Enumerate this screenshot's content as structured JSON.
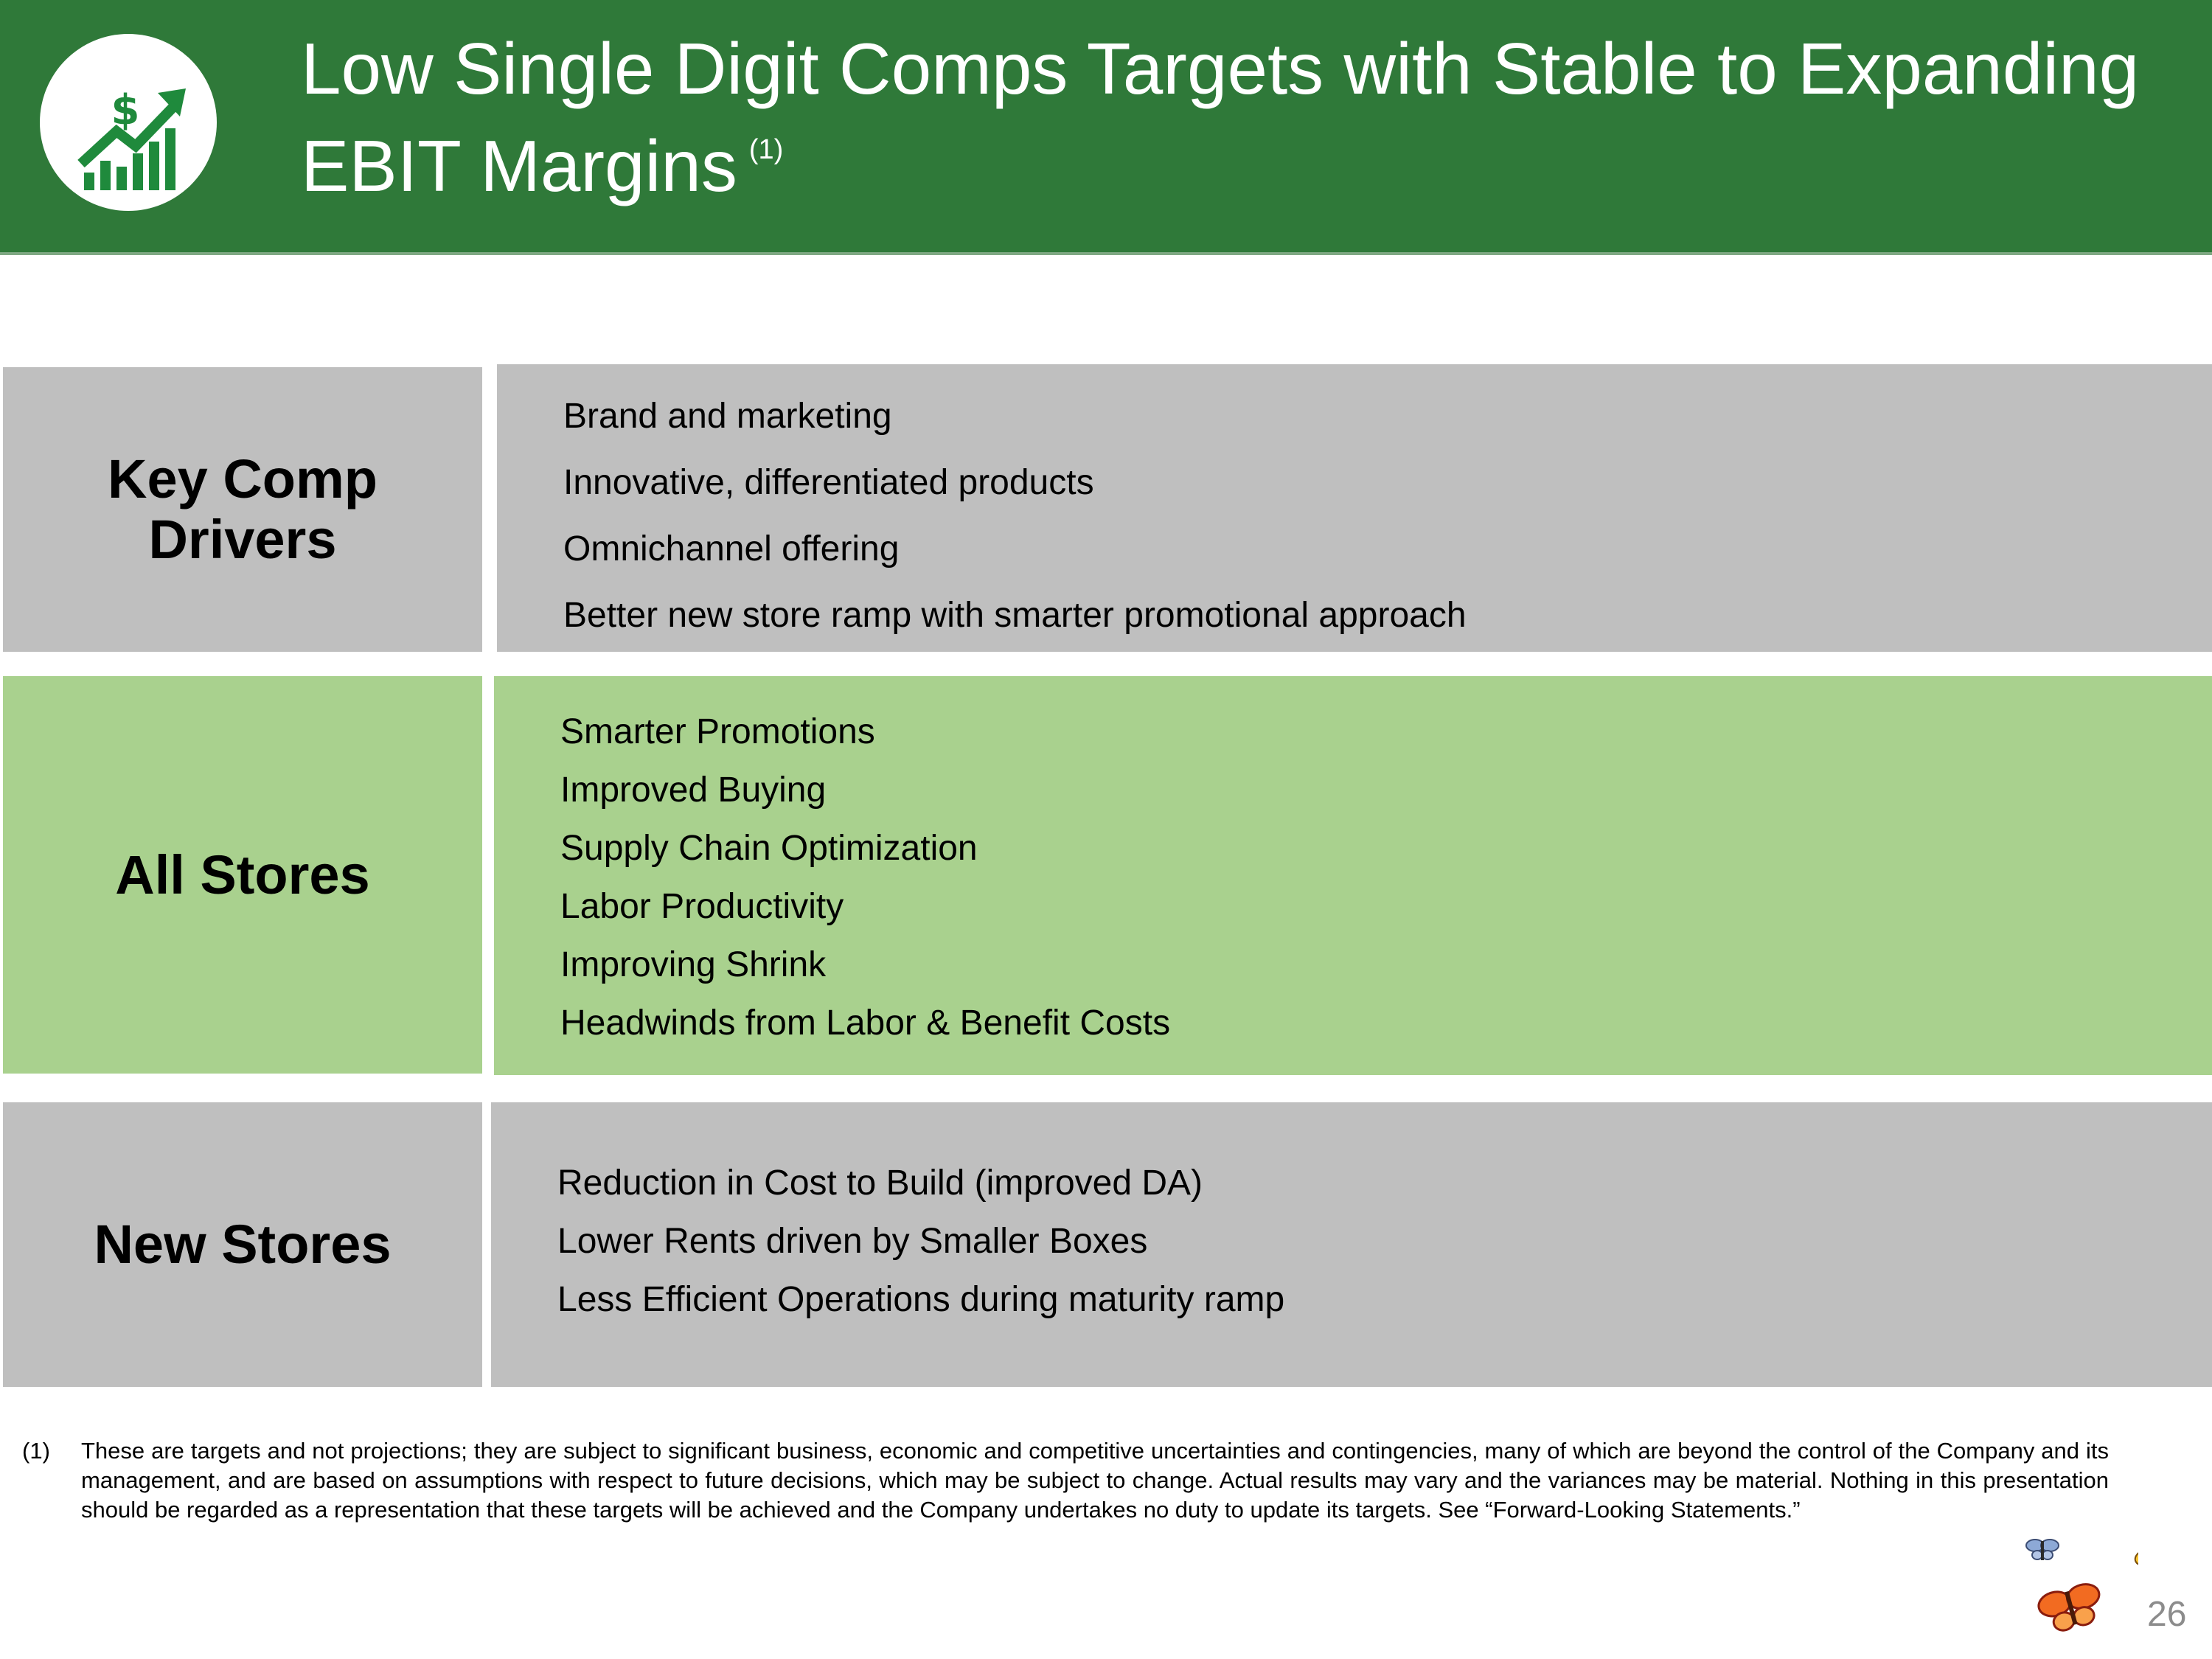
{
  "header": {
    "title_line1": "Low Single Digit Comps Targets with Stable to Expanding",
    "title_line2": "EBIT Margins",
    "title_footnote_ref": "(1)",
    "logo_icon": "growth-chart-dollar-icon",
    "logo_dollar": "$",
    "colors": {
      "header_bg": "#2f7939",
      "logo_fg": "#1f8a3c"
    }
  },
  "rows": [
    {
      "label": "Key Comp Drivers",
      "label_lines": [
        "Key Comp",
        "Drivers"
      ],
      "color": "#bfbfbf",
      "items": [
        "Brand and marketing",
        "Innovative, differentiated products",
        "Omnichannel offering",
        "Better new store ramp with smarter promotional approach"
      ]
    },
    {
      "label": "All Stores",
      "color": "#a9d18e",
      "items": [
        "Smarter Promotions",
        "Improved Buying",
        "Supply Chain Optimization",
        "Labor Productivity",
        "Improving Shrink",
        "Headwinds from Labor & Benefit Costs"
      ]
    },
    {
      "label": "New Stores",
      "color": "#bfbfbf",
      "items": [
        "Reduction in Cost to Build (improved DA)",
        "Lower Rents driven by Smaller Boxes",
        "Less Efficient Operations during maturity ramp"
      ]
    }
  ],
  "footnote": {
    "marker": "(1)",
    "text": "These are targets and not projections; they are subject to significant business, economic and competitive uncertainties and contingencies, many of which are beyond the control of the Company and its management, and are based on assumptions with respect to future decisions, which may be subject to change. Actual results may vary and the variances may be material. Nothing in this presentation should be regarded as a representation that these targets will be achieved and the Company undertakes no duty to update its targets. See “Forward-Looking Statements.”"
  },
  "decoration": {
    "icon": "butterflies-icon"
  },
  "page_number": "26"
}
